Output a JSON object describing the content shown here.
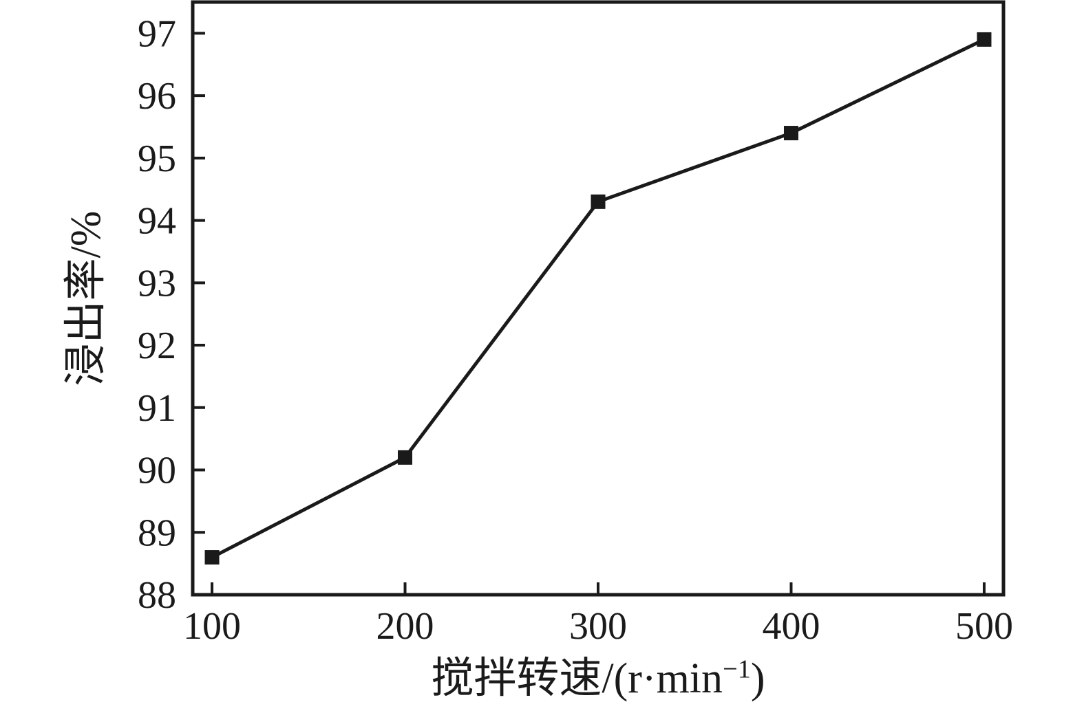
{
  "figure": {
    "background": "#ffffff",
    "ink_color": "#1a1a1a"
  },
  "chart_data": {
    "type": "line",
    "title": "",
    "xlabel": "搅拌转速/(r·min⁻¹)",
    "xlabel_parts": {
      "prefix": "搅拌转速/(r·min",
      "superscript": "−1",
      "suffix": ")"
    },
    "ylabel": "浸出率/%",
    "x": [
      100,
      200,
      300,
      400,
      500
    ],
    "series": [
      {
        "name": "浸出率",
        "values": [
          88.6,
          90.2,
          94.3,
          95.4,
          96.9
        ]
      }
    ],
    "xlim": [
      90,
      510
    ],
    "ylim": [
      88,
      97.5
    ],
    "xticks": [
      100,
      200,
      300,
      400,
      500
    ],
    "xtick_labels": [
      "100",
      "200",
      "300",
      "400",
      "500"
    ],
    "yticks": [
      88,
      89,
      90,
      91,
      92,
      93,
      94,
      95,
      96,
      97
    ],
    "ytick_labels": [
      "88",
      "89",
      "90",
      "91",
      "92",
      "93",
      "94",
      "95",
      "96",
      "97"
    ],
    "grid": false,
    "legend": "none",
    "marker": "filled-square",
    "line_color": "#1a1a1a",
    "marker_color": "#1a1a1a"
  }
}
